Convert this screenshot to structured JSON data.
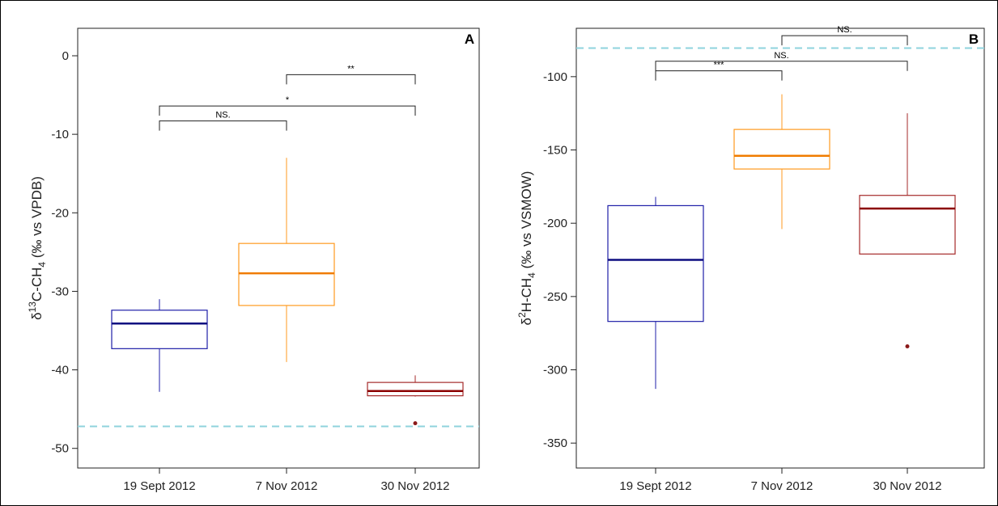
{
  "chart_data": [
    {
      "type": "box",
      "panel_label": "A",
      "ylabel_parts": {
        "a": "δ",
        "b": "13",
        "c": "C-CH",
        "d": "4",
        "e": " (‰ vs VPDB)"
      },
      "categories": [
        "19 Sept 2012",
        "7 Nov 2012",
        "30 Nov 2012"
      ],
      "ylim": [
        -52.5,
        3.5
      ],
      "yticks": [
        0,
        -10,
        -20,
        -30,
        -40,
        -50
      ],
      "ytick_labels": [
        "0",
        "-10",
        "-20",
        "-30",
        "-40",
        "-50"
      ],
      "reference_line": -47.2,
      "boxes": [
        {
          "min": -42.8,
          "q1": -37.3,
          "median": -34.1,
          "q3": -32.4,
          "max": -31.0,
          "outliers": [],
          "color": "#1f1fa8",
          "median_color": "#0d0d80"
        },
        {
          "min": -39.0,
          "q1": -31.8,
          "median": -27.7,
          "q3": -23.9,
          "max": -13.0,
          "outliers": [],
          "color": "#ff9a1f",
          "median_color": "#f07c00"
        },
        {
          "min": -43.4,
          "q1": -43.3,
          "median": -42.7,
          "q3": -41.6,
          "max": -40.7,
          "outliers": [
            -46.8
          ],
          "color": "#a52a2a",
          "median_color": "#8b0000"
        }
      ],
      "significance": [
        {
          "from": 1,
          "to": 2,
          "y": -8.3,
          "label": "NS."
        },
        {
          "from": 1,
          "to": 3,
          "y": -6.4,
          "label": "*"
        },
        {
          "from": 2,
          "to": 3,
          "y": -2.4,
          "label": "**"
        }
      ]
    },
    {
      "type": "box",
      "panel_label": "B",
      "ylabel_parts": {
        "a": "δ",
        "b": "2",
        "c": "H-CH",
        "d": "4",
        "e": " (‰ vs VSMOW)"
      },
      "categories": [
        "19 Sept 2012",
        "7 Nov 2012",
        "30 Nov 2012"
      ],
      "ylim": [
        -367,
        -67
      ],
      "yticks": [
        -100,
        -150,
        -200,
        -250,
        -300,
        -350
      ],
      "ytick_labels": [
        "-100",
        "-150",
        "-200",
        "-250",
        "-300",
        "-350"
      ],
      "reference_line": -80.5,
      "boxes": [
        {
          "min": -313,
          "q1": -267,
          "median": -225,
          "q3": -188,
          "max": -182,
          "outliers": [],
          "color": "#1f1fa8",
          "median_color": "#0d0d80"
        },
        {
          "min": -204,
          "q1": -163,
          "median": -154,
          "q3": -136,
          "max": -112,
          "outliers": [],
          "color": "#ff9a1f",
          "median_color": "#f07c00"
        },
        {
          "min": -221,
          "q1": -221,
          "median": -190,
          "q3": -181,
          "max": -125,
          "outliers": [
            -284
          ],
          "color": "#a52a2a",
          "median_color": "#8b0000"
        }
      ],
      "significance": [
        {
          "from": 1,
          "to": 2,
          "y": -96,
          "label": "***"
        },
        {
          "from": 1,
          "to": 3,
          "y": -89.5,
          "label": "NS."
        },
        {
          "from": 2,
          "to": 3,
          "y": -72,
          "label": "NS."
        }
      ]
    }
  ],
  "colors": {
    "reference_line": "#8fd3dd",
    "outlier": "#8b1a1a",
    "bracket": "#222222",
    "axis": "#222222"
  }
}
